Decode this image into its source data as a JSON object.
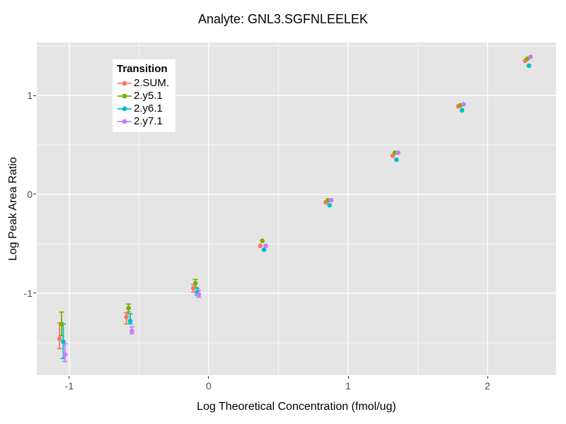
{
  "title": "Analyte: GNL3.SGFNLEELEK",
  "axes": {
    "x_label": "Log Theoretical Concentration (fmol/ug)",
    "y_label": "Log Peak Area Ratio"
  },
  "legend": {
    "title": "Transition",
    "items": [
      {
        "label": "2.SUM.",
        "color": "#F8766D"
      },
      {
        "label": "2.y5.1",
        "color": "#7CAE00"
      },
      {
        "label": "2.y6.1",
        "color": "#00BFC4"
      },
      {
        "label": "2.y7.1",
        "color": "#C77CFF"
      }
    ]
  },
  "colors": {
    "page_bg": "#FFFFFF",
    "panel_bg": "#E5E5E5",
    "grid_major": "#FFFFFF",
    "grid_minor": "rgba(255,255,255,0.65)",
    "tick_text": "#4D4D4D",
    "text": "#000000"
  },
  "chart_data": {
    "type": "scatter",
    "title": "Analyte: GNL3.SGFNLEELEK",
    "xlabel": "Log Theoretical Concentration (fmol/ug)",
    "ylabel": "Log Peak Area Ratio",
    "xlim": [
      -1.233,
      2.492
    ],
    "ylim": [
      -1.829,
      1.536
    ],
    "x_major_ticks": [
      -1,
      0,
      1,
      2
    ],
    "x_minor_ticks": [
      -0.5,
      0.5,
      1.5
    ],
    "y_major_ticks": [
      -1,
      0,
      1
    ],
    "y_minor_ticks": [
      -1.5,
      -0.5,
      0.5,
      1.5
    ],
    "grid": true,
    "legend_position": "top-left-inside",
    "series": [
      {
        "name": "2.SUM.",
        "color": "#F8766D",
        "points": [
          {
            "x": -1.07,
            "y": -1.46,
            "lo": -1.56,
            "hi": -1.3
          },
          {
            "x": -0.59,
            "y": -1.24,
            "lo": -1.31,
            "hi": -1.2
          },
          {
            "x": -0.11,
            "y": -0.95,
            "lo": -0.99,
            "hi": -0.91
          },
          {
            "x": 0.37,
            "y": -0.52,
            "lo": null,
            "hi": null
          },
          {
            "x": 0.84,
            "y": -0.08,
            "lo": null,
            "hi": null
          },
          {
            "x": 1.32,
            "y": 0.39,
            "lo": null,
            "hi": null
          },
          {
            "x": 1.79,
            "y": 0.89,
            "lo": null,
            "hi": null
          },
          {
            "x": 2.27,
            "y": 1.35,
            "lo": null,
            "hi": null
          }
        ]
      },
      {
        "name": "2.y5.1",
        "color": "#7CAE00",
        "points": [
          {
            "x": -1.055,
            "y": -1.31,
            "lo": -1.43,
            "hi": -1.19
          },
          {
            "x": -0.575,
            "y": -1.15,
            "lo": -1.19,
            "hi": -1.11
          },
          {
            "x": -0.095,
            "y": -0.9,
            "lo": -0.94,
            "hi": -0.86
          },
          {
            "x": 0.385,
            "y": -0.47,
            "lo": null,
            "hi": null
          },
          {
            "x": 0.855,
            "y": -0.06,
            "lo": null,
            "hi": null
          },
          {
            "x": 1.335,
            "y": 0.42,
            "lo": null,
            "hi": null
          },
          {
            "x": 1.805,
            "y": 0.9,
            "lo": null,
            "hi": null
          },
          {
            "x": 2.285,
            "y": 1.37,
            "lo": null,
            "hi": null
          }
        ]
      },
      {
        "name": "2.y6.1",
        "color": "#00BFC4",
        "points": [
          {
            "x": -1.043,
            "y": -1.49,
            "lo": -1.66,
            "hi": -1.31
          },
          {
            "x": -0.563,
            "y": -1.28,
            "lo": -1.31,
            "hi": -1.21
          },
          {
            "x": -0.083,
            "y": -0.99,
            "lo": -1.02,
            "hi": -0.95
          },
          {
            "x": 0.397,
            "y": -0.56,
            "lo": null,
            "hi": null
          },
          {
            "x": 0.867,
            "y": -0.11,
            "lo": null,
            "hi": null
          },
          {
            "x": 1.347,
            "y": 0.35,
            "lo": null,
            "hi": null
          },
          {
            "x": 1.817,
            "y": 0.85,
            "lo": null,
            "hi": null
          },
          {
            "x": 2.297,
            "y": 1.3,
            "lo": null,
            "hi": null
          }
        ]
      },
      {
        "name": "2.y7.1",
        "color": "#C77CFF",
        "points": [
          {
            "x": -1.031,
            "y": -1.62,
            "lo": -1.69,
            "hi": -1.51
          },
          {
            "x": -0.551,
            "y": -1.38,
            "lo": -1.41,
            "hi": -1.34
          },
          {
            "x": -0.071,
            "y": -1.01,
            "lo": -1.04,
            "hi": -0.97
          },
          {
            "x": 0.409,
            "y": -0.52,
            "lo": null,
            "hi": null
          },
          {
            "x": 0.879,
            "y": -0.06,
            "lo": null,
            "hi": null
          },
          {
            "x": 1.359,
            "y": 0.42,
            "lo": null,
            "hi": null
          },
          {
            "x": 1.829,
            "y": 0.91,
            "lo": null,
            "hi": null
          },
          {
            "x": 2.309,
            "y": 1.39,
            "lo": null,
            "hi": null
          }
        ]
      }
    ]
  }
}
